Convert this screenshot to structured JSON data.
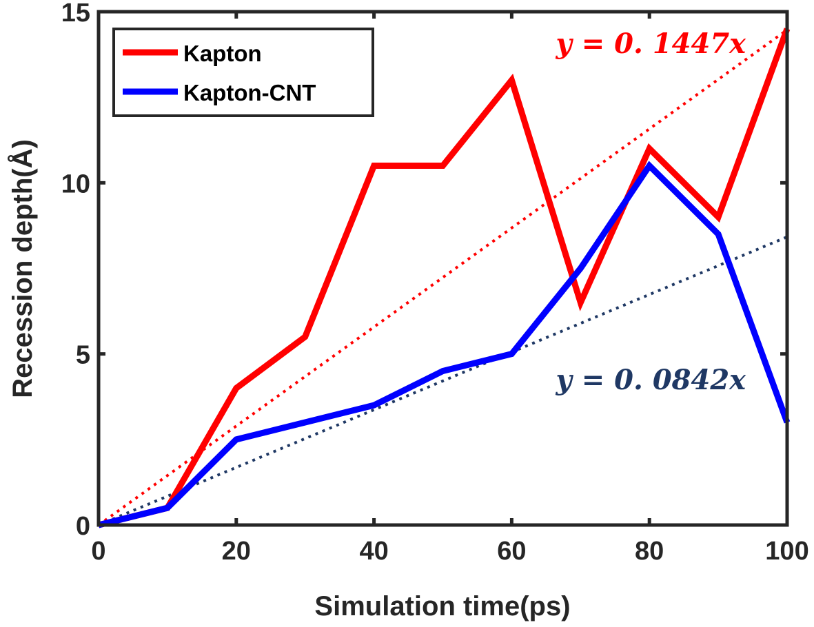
{
  "chart_data": {
    "type": "line",
    "title": "",
    "xlabel": "Simulation time(ps)",
    "ylabel": "Recession depth(Å)",
    "xlim": [
      0,
      100
    ],
    "ylim": [
      0,
      15
    ],
    "xticks": [
      0,
      20,
      40,
      60,
      80,
      100
    ],
    "yticks": [
      0,
      5,
      10,
      15
    ],
    "grid": false,
    "legend_position": "top-left",
    "x": [
      0,
      10,
      20,
      30,
      40,
      50,
      60,
      70,
      80,
      90,
      100
    ],
    "series": [
      {
        "name": "Kapton",
        "color": "#ff0000",
        "style": "solid",
        "values": [
          0,
          0.5,
          4,
          5.5,
          10.5,
          10.5,
          13,
          6.5,
          11,
          9,
          14.5
        ]
      },
      {
        "name": "Kapton-CNT",
        "color": "#0000ff",
        "style": "solid",
        "values": [
          0,
          0.5,
          2.5,
          3,
          3.5,
          4.5,
          5,
          7.5,
          10.5,
          8.5,
          3
        ]
      }
    ],
    "fits": [
      {
        "name": "Kapton fit",
        "slope": 0.1447,
        "color": "#ff0000",
        "style": "dotted",
        "label": "y = 0. 1447x"
      },
      {
        "name": "Kapton-CNT fit",
        "slope": 0.0842,
        "color": "#1f3864",
        "style": "dotted",
        "label": "y = 0. 0842x"
      }
    ]
  }
}
